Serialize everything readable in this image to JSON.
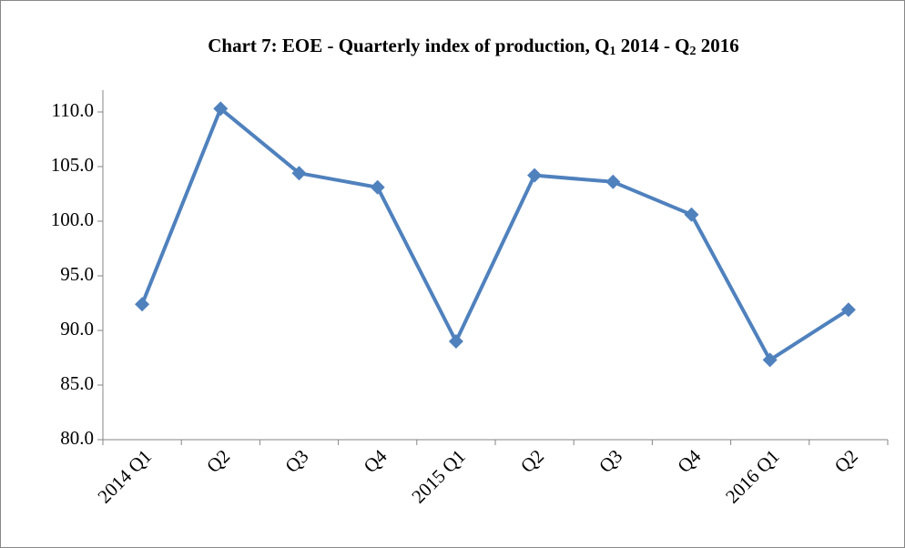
{
  "chart_data": {
    "type": "line",
    "title": [
      "Chart 7: EOE - Quarterly index of production, Q",
      "1",
      " 2014 - Q",
      "2",
      " 2016"
    ],
    "categories": [
      "2014 Q1",
      "Q2",
      "Q3",
      "Q4",
      "2015 Q1",
      "Q2",
      "Q3",
      "Q4",
      "2016 Q1",
      "Q2"
    ],
    "values": [
      92.4,
      110.3,
      104.4,
      103.1,
      89.0,
      104.2,
      103.6,
      100.6,
      87.3,
      91.9
    ],
    "color": "#4f81bd",
    "ylim": [
      80,
      112
    ],
    "yticks": [
      {
        "value": 80,
        "label": "80.0"
      },
      {
        "value": 85,
        "label": "85.0"
      },
      {
        "value": 90,
        "label": "90.0"
      },
      {
        "value": 95,
        "label": "95.0"
      },
      {
        "value": 100,
        "label": "100.0"
      },
      {
        "value": 105,
        "label": "105.0"
      },
      {
        "value": 110,
        "label": "110.0"
      }
    ],
    "grid": false
  }
}
